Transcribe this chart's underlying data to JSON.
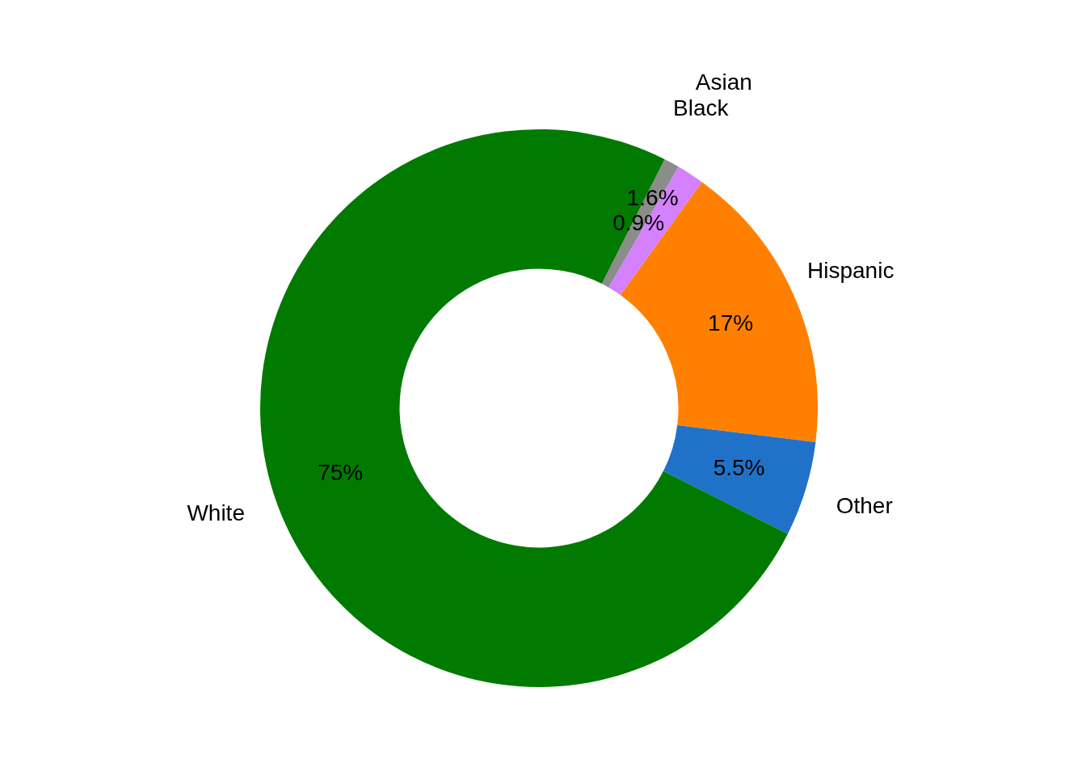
{
  "chart_data": {
    "type": "donut",
    "categories": [
      "Black",
      "Asian",
      "Hispanic",
      "Other",
      "White"
    ],
    "values": [
      0.9,
      1.6,
      17,
      5.5,
      75
    ],
    "value_labels": [
      "0.9%",
      "1.6%",
      "17%",
      "5.5%",
      "75%"
    ],
    "colors": [
      "#8c8c8c",
      "#d580ff",
      "#ff8000",
      "#1f72c8",
      "#007a00"
    ],
    "legend": false
  }
}
